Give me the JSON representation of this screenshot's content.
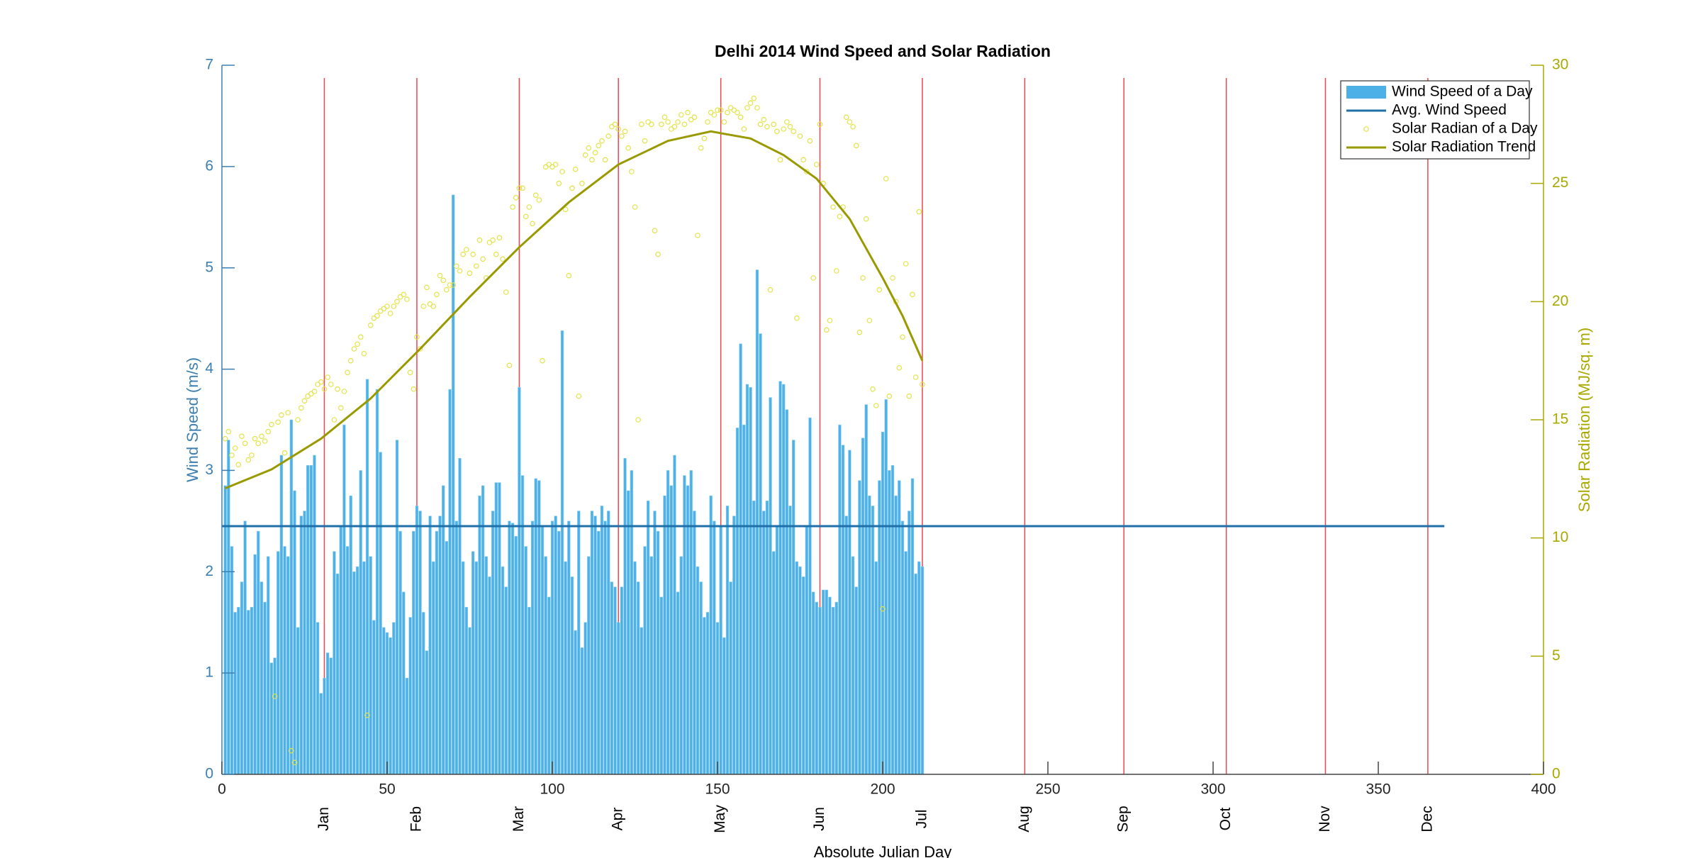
{
  "chart_data": {
    "type": "bar-scatter-combo",
    "title": "Delhi 2014 Wind Speed and Solar Radiation",
    "x_label": "Absolute Julian Day",
    "y_label": "Wind Speed (m/s)",
    "y2_label": "Solar Radiation (MJ/sq. m)",
    "xlim": [
      0,
      400
    ],
    "xticks": [
      0,
      50,
      100,
      150,
      200,
      250,
      300,
      350,
      400
    ],
    "ylim": [
      0,
      7
    ],
    "yticks": [
      0,
      1,
      2,
      3,
      4,
      5,
      6,
      7
    ],
    "y2lim": [
      0,
      30
    ],
    "y2ticks": [
      0,
      5,
      10,
      15,
      20,
      25,
      30
    ],
    "month_ticks": [
      {
        "value": 31,
        "label": "Jan"
      },
      {
        "value": 59,
        "label": "Feb"
      },
      {
        "value": 90,
        "label": "Mar"
      },
      {
        "value": 120,
        "label": "Apr"
      },
      {
        "value": 151,
        "label": "May"
      },
      {
        "value": 181,
        "label": "Jun"
      },
      {
        "value": 212,
        "label": "Jul"
      },
      {
        "value": 243,
        "label": "Aug"
      },
      {
        "value": 273,
        "label": "Sep"
      },
      {
        "value": 304,
        "label": "Oct"
      },
      {
        "value": 334,
        "label": "Nov"
      },
      {
        "value": 365,
        "label": "Dec"
      }
    ],
    "month_line_color": "#e8474f",
    "legend": "upper right",
    "x": [
      1,
      2,
      3,
      4,
      5,
      6,
      7,
      8,
      9,
      10,
      11,
      12,
      13,
      14,
      15,
      16,
      17,
      18,
      19,
      20,
      21,
      22,
      23,
      24,
      25,
      26,
      27,
      28,
      29,
      30,
      31,
      32,
      33,
      34,
      35,
      36,
      37,
      38,
      39,
      40,
      41,
      42,
      43,
      44,
      45,
      46,
      47,
      48,
      49,
      50,
      51,
      52,
      53,
      54,
      55,
      56,
      57,
      58,
      59,
      60,
      61,
      62,
      63,
      64,
      65,
      66,
      67,
      68,
      69,
      70,
      71,
      72,
      73,
      74,
      75,
      76,
      77,
      78,
      79,
      80,
      81,
      82,
      83,
      84,
      85,
      86,
      87,
      88,
      89,
      90,
      91,
      92,
      93,
      94,
      95,
      96,
      97,
      98,
      99,
      100,
      101,
      102,
      103,
      104,
      105,
      106,
      107,
      108,
      109,
      110,
      111,
      112,
      113,
      114,
      115,
      116,
      117,
      118,
      119,
      120,
      121,
      122,
      123,
      124,
      125,
      126,
      127,
      128,
      129,
      130,
      131,
      132,
      133,
      134,
      135,
      136,
      137,
      138,
      139,
      140,
      141,
      142,
      143,
      144,
      145,
      146,
      147,
      148,
      149,
      150,
      151,
      152,
      153,
      154,
      155,
      156,
      157,
      158,
      159,
      160,
      161,
      162,
      163,
      164,
      165,
      166,
      167,
      168,
      169,
      170,
      171,
      172,
      173,
      174,
      175,
      176,
      177,
      178,
      179,
      180,
      181,
      182,
      183,
      184,
      185,
      186,
      187,
      188,
      189,
      190,
      191,
      192,
      193,
      194,
      195,
      196,
      197,
      198,
      199,
      200,
      201,
      202,
      203,
      204,
      205,
      206,
      207,
      208,
      209,
      210,
      211,
      212
    ],
    "series": [
      {
        "name": "Wind Speed of a Day",
        "kind": "bar",
        "axis": "y",
        "color": "#4db0e6",
        "values": [
          2.85,
          3.3,
          2.25,
          1.6,
          1.65,
          1.9,
          2.5,
          1.62,
          1.65,
          2.17,
          2.4,
          1.9,
          1.7,
          2.15,
          1.1,
          1.15,
          2.2,
          3.15,
          2.25,
          2.15,
          3.5,
          2.8,
          1.45,
          2.55,
          2.6,
          3.05,
          3.05,
          3.15,
          1.5,
          0.8,
          0.95,
          1.2,
          1.15,
          2.2,
          1.98,
          2.45,
          3.45,
          2.25,
          2.75,
          2.0,
          2.05,
          3.0,
          2.1,
          3.9,
          2.15,
          1.52,
          3.8,
          3.18,
          1.45,
          1.4,
          1.35,
          1.5,
          3.3,
          2.4,
          1.8,
          0.95,
          1.55,
          2.4,
          2.65,
          2.6,
          1.6,
          1.22,
          2.55,
          2.1,
          2.4,
          2.55,
          2.85,
          2.3,
          3.8,
          5.72,
          2.5,
          3.12,
          2.1,
          1.65,
          1.45,
          2.2,
          2.1,
          2.75,
          2.85,
          2.15,
          1.95,
          2.6,
          2.88,
          2.88,
          2.05,
          1.85,
          2.5,
          2.48,
          2.35,
          3.82,
          2.95,
          2.25,
          1.65,
          2.5,
          2.92,
          2.9,
          2.45,
          2.15,
          1.75,
          2.5,
          2.55,
          2.4,
          4.38,
          2.1,
          2.5,
          1.95,
          1.42,
          2.6,
          1.25,
          1.5,
          2.15,
          2.6,
          2.55,
          2.4,
          2.65,
          2.5,
          2.6,
          1.9,
          1.85,
          1.5,
          1.85,
          3.12,
          2.8,
          3.0,
          2.1,
          1.9,
          1.45,
          2.25,
          2.7,
          2.15,
          2.6,
          2.4,
          1.75,
          2.75,
          3.0,
          2.85,
          3.15,
          1.8,
          2.15,
          2.95,
          2.85,
          3.0,
          2.6,
          2.05,
          1.9,
          1.55,
          1.6,
          2.75,
          2.5,
          1.5,
          2.45,
          1.35,
          2.65,
          1.9,
          2.55,
          3.42,
          4.25,
          3.45,
          3.85,
          3.82,
          2.7,
          4.98,
          4.35,
          2.6,
          2.7,
          3.72,
          2.2,
          2.45,
          3.88,
          3.85,
          3.6,
          2.65,
          3.3,
          2.1,
          2.05,
          1.95,
          2.45,
          3.52,
          1.8,
          1.7,
          1.65,
          1.82,
          1.82,
          1.75,
          1.65,
          1.7,
          3.45,
          3.25,
          2.55,
          3.2,
          2.15,
          1.85,
          2.9,
          3.32,
          3.65,
          2.75,
          2.65,
          2.1,
          2.9,
          3.38,
          3.7,
          3.0,
          3.05,
          2.75,
          2.9,
          2.5,
          2.2,
          2.6,
          2.92,
          1.98,
          2.1,
          2.05
        ]
      },
      {
        "name": "Avg. Wind Speed",
        "kind": "line",
        "axis": "y",
        "color": "#1f6fa8",
        "x": [
          0,
          370
        ],
        "values": [
          2.45,
          2.45
        ]
      },
      {
        "name": "Solar Radian of a Day",
        "kind": "scatter",
        "axis": "y2",
        "color": "#e3e34a",
        "values": [
          14.2,
          14.5,
          13.5,
          13.8,
          13.1,
          14.3,
          14.0,
          13.3,
          13.5,
          14.2,
          14.0,
          14.3,
          14.1,
          14.5,
          14.8,
          3.3,
          14.9,
          15.2,
          13.6,
          15.3,
          1.0,
          0.5,
          15.0,
          15.5,
          15.8,
          16.0,
          16.1,
          16.2,
          16.5,
          16.6,
          16.3,
          16.8,
          16.5,
          15.0,
          16.3,
          15.5,
          16.2,
          17.0,
          17.5,
          18.0,
          18.2,
          18.5,
          17.8,
          2.5,
          19.0,
          19.3,
          19.4,
          19.6,
          19.7,
          19.8,
          19.5,
          19.8,
          20.0,
          20.2,
          20.3,
          20.1,
          17.0,
          16.3,
          18.5,
          18.0,
          19.8,
          20.6,
          19.9,
          19.8,
          20.3,
          21.1,
          20.9,
          20.5,
          20.7,
          20.7,
          21.5,
          21.3,
          22.0,
          22.2,
          21.2,
          22.0,
          21.5,
          22.6,
          21.8,
          21.0,
          22.5,
          22.6,
          22.0,
          22.7,
          21.8,
          20.4,
          17.3,
          24.0,
          24.4,
          24.8,
          24.8,
          23.6,
          24.0,
          23.3,
          24.5,
          24.3,
          17.5,
          25.7,
          25.8,
          25.7,
          25.8,
          25.0,
          25.5,
          23.9,
          21.1,
          24.8,
          25.6,
          16.0,
          25.0,
          26.2,
          26.5,
          26.0,
          26.3,
          26.6,
          26.8,
          26.0,
          27.0,
          27.4,
          27.5,
          27.3,
          27.0,
          27.2,
          26.5,
          25.5,
          24.0,
          15.0,
          27.5,
          26.8,
          27.6,
          27.5,
          23.0,
          22.0,
          27.5,
          27.8,
          27.6,
          27.3,
          27.4,
          27.6,
          27.9,
          27.5,
          28.0,
          27.7,
          27.8,
          22.8,
          26.5,
          26.9,
          27.6,
          28.0,
          27.9,
          28.1,
          28.1,
          27.6,
          28.0,
          28.2,
          28.1,
          28.0,
          27.8,
          27.3,
          28.2,
          28.4,
          28.6,
          28.2,
          27.5,
          27.7,
          27.4,
          20.5,
          27.5,
          27.2,
          26.0,
          27.3,
          27.6,
          27.4,
          27.2,
          19.3,
          27.0,
          26.0,
          25.5,
          26.8,
          21.0,
          25.8,
          27.5,
          25.0,
          18.8,
          19.2,
          24.0,
          21.3,
          23.6,
          24.0,
          27.8,
          27.6,
          27.4,
          26.6,
          18.7,
          21.0,
          23.5,
          19.2,
          16.3,
          15.6,
          20.5,
          7.0,
          25.2,
          16.0,
          21.0,
          20.0,
          17.2,
          18.5,
          21.6,
          16.0,
          20.3,
          16.8,
          23.8,
          16.5
        ]
      },
      {
        "name": "Solar Radiation Trend",
        "kind": "line",
        "axis": "y2",
        "color": "#999900",
        "x": [
          1,
          15,
          30,
          45,
          60,
          75,
          90,
          105,
          120,
          135,
          148,
          160,
          170,
          180,
          190,
          200,
          206,
          212
        ],
        "values": [
          12.1,
          12.9,
          14.2,
          15.9,
          18.0,
          20.2,
          22.3,
          24.2,
          25.8,
          26.8,
          27.2,
          26.9,
          26.2,
          25.2,
          23.5,
          21.0,
          19.4,
          17.5
        ]
      }
    ]
  }
}
